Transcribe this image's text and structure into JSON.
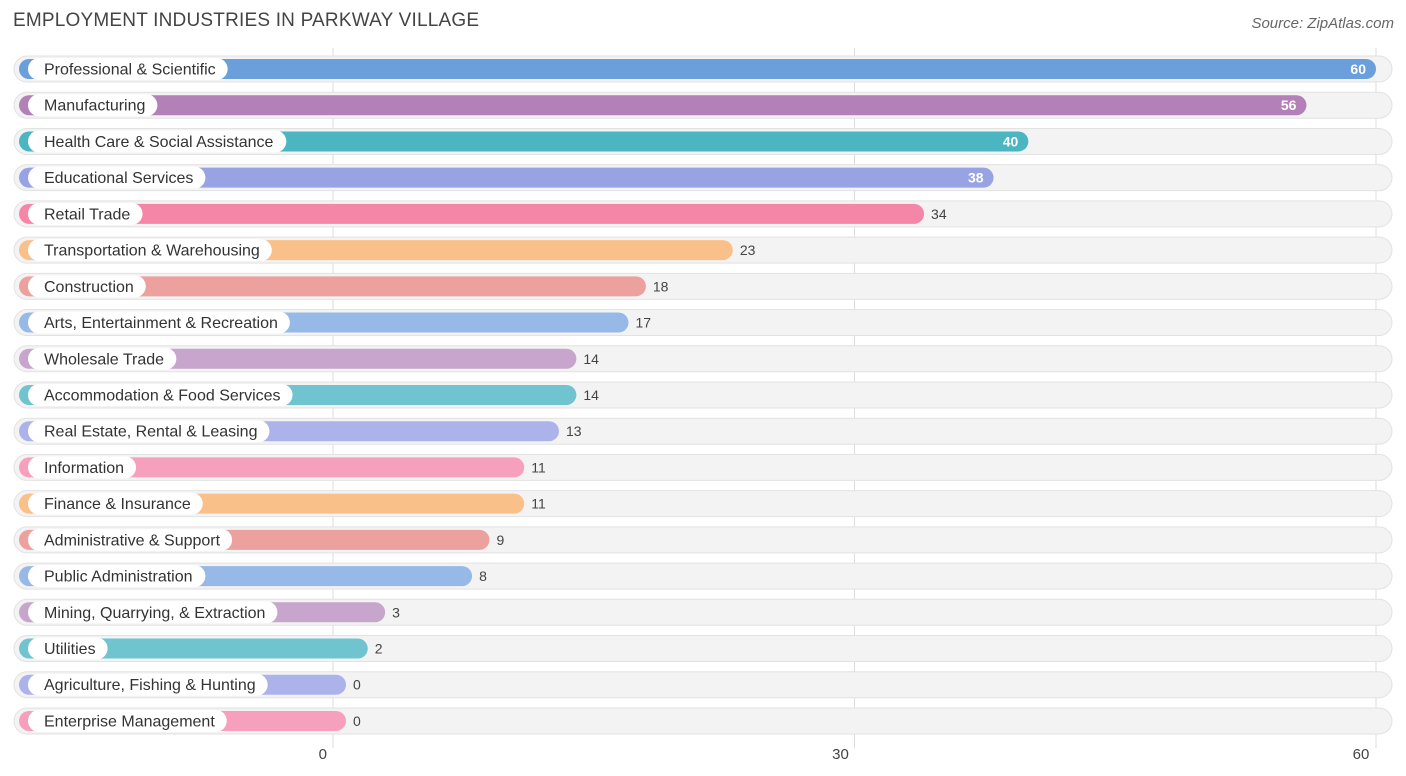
{
  "header": {
    "title": "EMPLOYMENT INDUSTRIES IN PARKWAY VILLAGE",
    "source": "Source: ZipAtlas.com"
  },
  "chart_data": {
    "type": "bar",
    "orientation": "horizontal",
    "title": "EMPLOYMENT INDUSTRIES IN PARKWAY VILLAGE",
    "xlabel": "",
    "ylabel": "",
    "xlim": [
      0,
      60
    ],
    "ticks": [
      0,
      30,
      60
    ],
    "tick_labels": [
      "0",
      "30",
      "60"
    ],
    "grid": true,
    "categories": [
      "Professional & Scientific",
      "Manufacturing",
      "Health Care & Social Assistance",
      "Educational Services",
      "Retail Trade",
      "Transportation & Warehousing",
      "Construction",
      "Arts, Entertainment & Recreation",
      "Wholesale Trade",
      "Accommodation & Food Services",
      "Real Estate, Rental & Leasing",
      "Information",
      "Finance & Insurance",
      "Administrative & Support",
      "Public Administration",
      "Mining, Quarrying, & Extraction",
      "Utilities",
      "Agriculture, Fishing & Hunting",
      "Enterprise Management"
    ],
    "values": [
      60,
      56,
      40,
      38,
      34,
      23,
      18,
      17,
      14,
      14,
      13,
      11,
      11,
      9,
      8,
      3,
      2,
      0,
      0
    ],
    "value_labels": [
      "60",
      "56",
      "40",
      "38",
      "34",
      "23",
      "18",
      "17",
      "14",
      "14",
      "13",
      "11",
      "11",
      "9",
      "8",
      "3",
      "2",
      "0",
      "0"
    ],
    "colors": [
      "#6a9fdc",
      "#b380b8",
      "#4bb5c1",
      "#97a3e3",
      "#f586a8",
      "#f9c08a",
      "#eca19e",
      "#97b9e8",
      "#c7a5cc",
      "#6fc4d0",
      "#abb3ea",
      "#f6a0bd",
      "#f9c08a",
      "#eca19e",
      "#97b9e8",
      "#c7a5cc",
      "#6fc4d0",
      "#abb3ea",
      "#f6a0bd"
    ]
  }
}
